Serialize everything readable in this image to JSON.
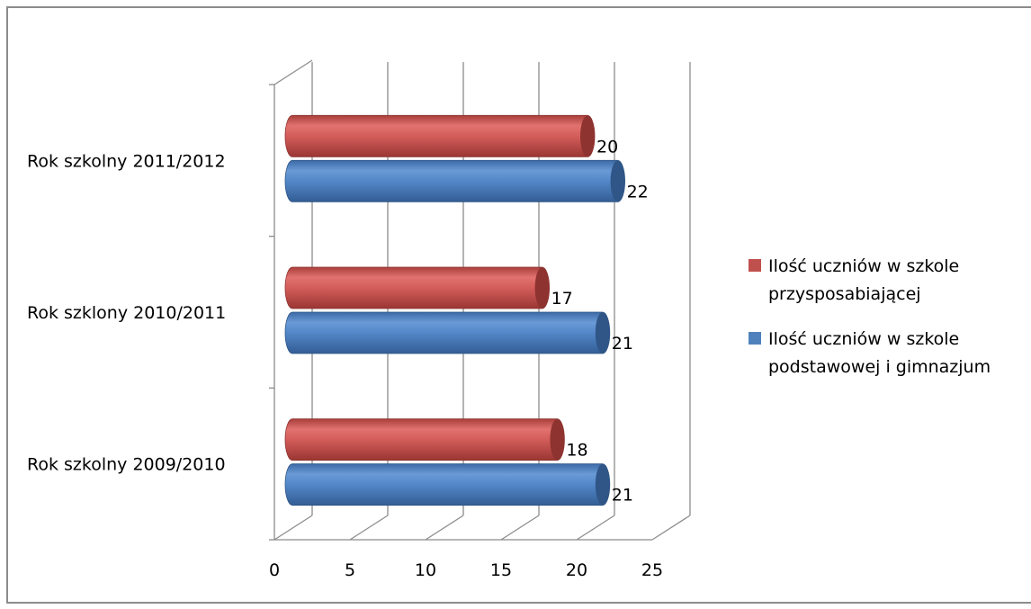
{
  "chart_data": {
    "type": "bar",
    "orientation": "horizontal",
    "style": "3d-cylinder",
    "categories": [
      "Rok szkolny 2009/2010",
      "Rok szklony 2010/2011",
      "Rok szkolny 2011/2012"
    ],
    "series": [
      {
        "name": "Ilość uczniów w szkole przysposabiającej",
        "name_lines": [
          "Ilość uczniów w szkole",
          "przysposabiającej"
        ],
        "color": "#c0504d",
        "values": [
          18,
          17,
          20
        ]
      },
      {
        "name": "Ilość uczniów w szkole podstawowej i gimnazjum",
        "name_lines": [
          "Ilość uczniów w szkole",
          "podstawowej i gimnazjum"
        ],
        "color": "#4f81bd",
        "values": [
          21,
          21,
          22
        ]
      }
    ],
    "xlim": [
      0,
      25
    ],
    "ticks": [
      "0",
      "5",
      "10",
      "15",
      "20",
      "25"
    ],
    "title": "",
    "xlabel": "",
    "ylabel": "",
    "grid": true,
    "legend_position": "right",
    "data_labels": true
  }
}
